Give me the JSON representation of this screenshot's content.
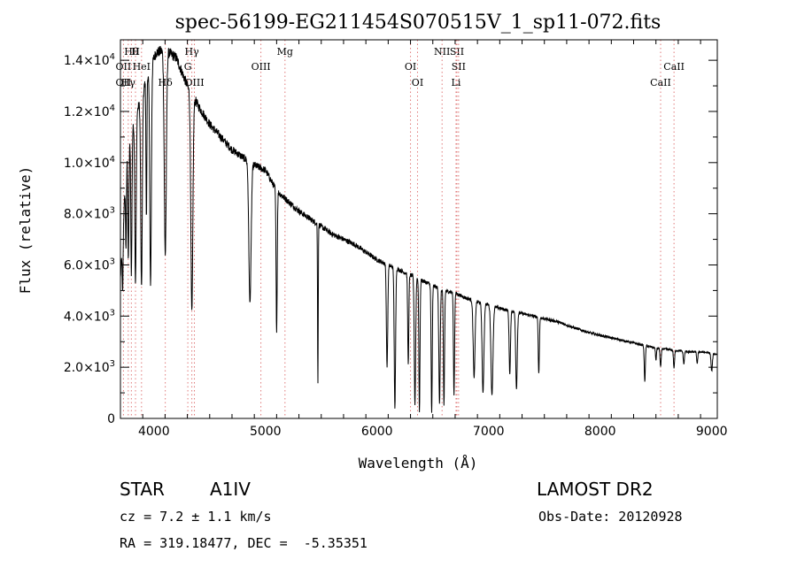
{
  "chart_data": {
    "type": "line",
    "title": "spec-56199-EG211454S070515V_1_sp11-072.fits",
    "xlabel": "Wavelength (Å)",
    "ylabel": "Flux (relative)",
    "xlim": [
      3700,
      9050
    ],
    "ylim": [
      0,
      14800
    ],
    "x_ticks": [
      4000,
      5000,
      6000,
      7000,
      8000,
      9000
    ],
    "y_ticks": [
      {
        "value": 0,
        "label": "0"
      },
      {
        "value": 2000,
        "label": "2.0×10",
        "exp": "3"
      },
      {
        "value": 4000,
        "label": "4.0×10",
        "exp": "3"
      },
      {
        "value": 6000,
        "label": "6.0×10",
        "exp": "3"
      },
      {
        "value": 8000,
        "label": "8.0×10",
        "exp": "3"
      },
      {
        "value": 10000,
        "label": "1.0×10",
        "exp": "4"
      },
      {
        "value": 12000,
        "label": "1.2×10",
        "exp": "4"
      },
      {
        "value": 14000,
        "label": "1.4×10",
        "exp": "4"
      }
    ],
    "continuum": [
      [
        3700,
        5500
      ],
      [
        3760,
        10500
      ],
      [
        3820,
        11500
      ],
      [
        3880,
        12500
      ],
      [
        3950,
        13500
      ],
      [
        4020,
        14300
      ],
      [
        4100,
        14400
      ],
      [
        4200,
        14100
      ],
      [
        4300,
        13000
      ],
      [
        4400,
        12200
      ],
      [
        4500,
        11500
      ],
      [
        4600,
        11000
      ],
      [
        4700,
        10500
      ],
      [
        4800,
        10200
      ],
      [
        4900,
        9900
      ],
      [
        5000,
        9700
      ],
      [
        5100,
        8900
      ],
      [
        5200,
        8500
      ],
      [
        5300,
        8100
      ],
      [
        5400,
        7800
      ],
      [
        5500,
        7500
      ],
      [
        5600,
        7200
      ],
      [
        5700,
        7000
      ],
      [
        5800,
        6800
      ],
      [
        5900,
        6500
      ],
      [
        6000,
        6200
      ],
      [
        6100,
        6000
      ],
      [
        6200,
        5800
      ],
      [
        6300,
        5600
      ],
      [
        6400,
        5400
      ],
      [
        6500,
        5200
      ],
      [
        6600,
        5000
      ],
      [
        6700,
        4900
      ],
      [
        6800,
        4700
      ],
      [
        6900,
        4550
      ],
      [
        7000,
        4450
      ],
      [
        7100,
        4300
      ],
      [
        7200,
        4200
      ],
      [
        7300,
        4100
      ],
      [
        7400,
        4000
      ],
      [
        7500,
        3900
      ],
      [
        7600,
        3800
      ],
      [
        7700,
        3650
      ],
      [
        7800,
        3500
      ],
      [
        7900,
        3350
      ],
      [
        8000,
        3250
      ],
      [
        8100,
        3150
      ],
      [
        8200,
        3050
      ],
      [
        8300,
        2950
      ],
      [
        8400,
        2850
      ],
      [
        8500,
        2750
      ],
      [
        8600,
        2700
      ],
      [
        8700,
        2650
      ],
      [
        8800,
        2600
      ],
      [
        8900,
        2600
      ],
      [
        9000,
        2550
      ],
      [
        9050,
        2500
      ]
    ],
    "absorption": [
      [
        3720,
        2200,
        4
      ],
      [
        3750,
        3000,
        4
      ],
      [
        3771,
        4500,
        5
      ],
      [
        3798,
        5500,
        5
      ],
      [
        3835,
        6500,
        6
      ],
      [
        3889,
        7500,
        7
      ],
      [
        3933,
        5500,
        4
      ],
      [
        3970,
        8500,
        7
      ],
      [
        4102,
        8000,
        9
      ],
      [
        4340,
        8500,
        9
      ],
      [
        4861,
        5500,
        10
      ],
      [
        5100,
        5500,
        5
      ],
      [
        5470,
        6200,
        3
      ],
      [
        6090,
        4000,
        6
      ],
      [
        6160,
        5500,
        6
      ],
      [
        6280,
        3500,
        5
      ],
      [
        6340,
        5000,
        6
      ],
      [
        6380,
        5200,
        5
      ],
      [
        6490,
        5000,
        5
      ],
      [
        6560,
        4500,
        6
      ],
      [
        6600,
        4500,
        5
      ],
      [
        6690,
        4000,
        5
      ],
      [
        6870,
        3000,
        8
      ],
      [
        6950,
        3500,
        8
      ],
      [
        7030,
        3500,
        9
      ],
      [
        7190,
        2500,
        6
      ],
      [
        7250,
        3000,
        7
      ],
      [
        7450,
        2200,
        5
      ],
      [
        8400,
        1400,
        5
      ],
      [
        8500,
        500,
        4
      ],
      [
        8542,
        700,
        5
      ],
      [
        8662,
        700,
        5
      ],
      [
        8750,
        500,
        5
      ],
      [
        8870,
        450,
        5
      ],
      [
        9000,
        700,
        6
      ]
    ],
    "line_markers": [
      {
        "label": "Hθ",
        "x": 3798,
        "row": 0
      },
      {
        "label": "H",
        "x": 3835,
        "row": 0
      },
      {
        "label": "Hγ",
        "x": 4340,
        "row": 0
      },
      {
        "label": "Mg",
        "x": 5175,
        "row": 0
      },
      {
        "label": "NII",
        "x": 6583,
        "row": 0
      },
      {
        "label": "SII",
        "x": 6716,
        "row": 0
      },
      {
        "label": "OII",
        "x": 3727,
        "row": 1
      },
      {
        "label": "HeI",
        "x": 3889,
        "row": 1
      },
      {
        "label": "G",
        "x": 4304,
        "row": 1
      },
      {
        "label": "OIII",
        "x": 4959,
        "row": 1
      },
      {
        "label": "OI",
        "x": 6300,
        "row": 1
      },
      {
        "label": "SII",
        "x": 6731,
        "row": 1
      },
      {
        "label": "CaII",
        "x": 8662,
        "row": 1
      },
      {
        "label": "OII",
        "x": 3727,
        "row": 2
      },
      {
        "label": "Hγ",
        "x": 3770,
        "row": 2
      },
      {
        "label": "Hδ",
        "x": 4102,
        "row": 2
      },
      {
        "label": "OIII",
        "x": 4363,
        "row": 2
      },
      {
        "label": "OI",
        "x": 6363,
        "row": 2
      },
      {
        "label": "Li",
        "x": 6708,
        "row": 2
      },
      {
        "label": "CaII",
        "x": 8542,
        "row": 2
      }
    ]
  },
  "info": {
    "class_label": "STAR",
    "subclass": "A1IV",
    "survey": "LAMOST DR2",
    "cz": "cz = 7.2 ± 1.1 km/s",
    "obs_date": "Obs-Date: 20120928",
    "coords": "RA = 319.18477, DEC =  -5.35351"
  }
}
